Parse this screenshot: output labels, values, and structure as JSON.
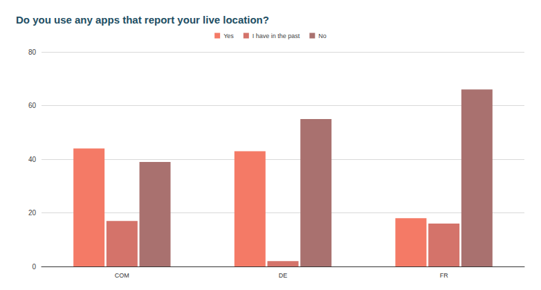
{
  "chart_data": {
    "type": "bar",
    "title": "Do you use any apps that report your live location?",
    "categories": [
      "COM",
      "DE",
      "FR"
    ],
    "series": [
      {
        "name": "Yes",
        "color": "#f47a66",
        "values": [
          44,
          43,
          18
        ]
      },
      {
        "name": "I have in the past",
        "color": "#d4736a",
        "values": [
          17,
          2,
          16
        ]
      },
      {
        "name": "No",
        "color": "#a9716f",
        "values": [
          39,
          55,
          66
        ]
      }
    ],
    "ylim": [
      0,
      80
    ],
    "yticks": [
      0,
      20,
      40,
      60,
      80
    ],
    "grid": true,
    "legend": "top"
  }
}
